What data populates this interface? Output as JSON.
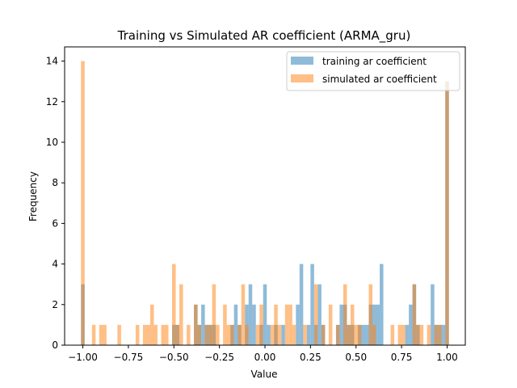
{
  "chart_data": {
    "type": "bar",
    "title": "Training vs Simulated AR coefficient (ARMA_gru)",
    "xlabel": "Value",
    "ylabel": "Frequency",
    "xlim": [
      -1.1,
      1.1
    ],
    "ylim": [
      0,
      14.7
    ],
    "grid": false,
    "legend_position": "top-right",
    "bin_width": 0.02,
    "xticks": [
      -1.0,
      -0.75,
      -0.5,
      -0.25,
      0.0,
      0.25,
      0.5,
      0.75,
      1.0
    ],
    "xtick_labels": [
      "−1.00",
      "−0.75",
      "−0.50",
      "−0.25",
      "0.00",
      "0.25",
      "0.50",
      "0.75",
      "1.00"
    ],
    "yticks": [
      0,
      2,
      4,
      6,
      8,
      10,
      12,
      14
    ],
    "ytick_labels": [
      "0",
      "2",
      "4",
      "6",
      "8",
      "10",
      "12",
      "14"
    ],
    "series": [
      {
        "name": "training ar coefficient",
        "color": "#1f77b4",
        "opacity": 0.5,
        "bins": [
          [
            -1.0,
            3
          ],
          [
            -0.5,
            1
          ],
          [
            -0.48,
            1
          ],
          [
            -0.38,
            2
          ],
          [
            -0.36,
            1
          ],
          [
            -0.34,
            2
          ],
          [
            -0.32,
            1
          ],
          [
            -0.3,
            1
          ],
          [
            -0.28,
            1
          ],
          [
            -0.18,
            1
          ],
          [
            -0.16,
            2
          ],
          [
            -0.14,
            1
          ],
          [
            -0.1,
            2
          ],
          [
            -0.08,
            3
          ],
          [
            -0.06,
            2
          ],
          [
            -0.02,
            1
          ],
          [
            0.0,
            3
          ],
          [
            0.02,
            1
          ],
          [
            0.06,
            1
          ],
          [
            0.1,
            1
          ],
          [
            0.18,
            2
          ],
          [
            0.2,
            4
          ],
          [
            0.24,
            1
          ],
          [
            0.26,
            4
          ],
          [
            0.28,
            1
          ],
          [
            0.3,
            3
          ],
          [
            0.32,
            1
          ],
          [
            0.4,
            1
          ],
          [
            0.42,
            2
          ],
          [
            0.44,
            2
          ],
          [
            0.46,
            1
          ],
          [
            0.48,
            1
          ],
          [
            0.52,
            1
          ],
          [
            0.54,
            1
          ],
          [
            0.56,
            1
          ],
          [
            0.58,
            2
          ],
          [
            0.6,
            2
          ],
          [
            0.62,
            2
          ],
          [
            0.64,
            4
          ],
          [
            0.78,
            1
          ],
          [
            0.8,
            2
          ],
          [
            0.82,
            3
          ],
          [
            0.84,
            1
          ],
          [
            0.92,
            3
          ],
          [
            0.94,
            1
          ],
          [
            0.96,
            1
          ],
          [
            0.98,
            1
          ],
          [
            1.0,
            13
          ]
        ]
      },
      {
        "name": "simulated ar coefficient",
        "color": "#ff7f0e",
        "opacity": 0.5,
        "bins": [
          [
            -1.0,
            14
          ],
          [
            -0.94,
            1
          ],
          [
            -0.9,
            1
          ],
          [
            -0.88,
            1
          ],
          [
            -0.8,
            1
          ],
          [
            -0.7,
            1
          ],
          [
            -0.66,
            1
          ],
          [
            -0.64,
            1
          ],
          [
            -0.62,
            2
          ],
          [
            -0.6,
            1
          ],
          [
            -0.56,
            1
          ],
          [
            -0.54,
            1
          ],
          [
            -0.5,
            4
          ],
          [
            -0.48,
            1
          ],
          [
            -0.46,
            3
          ],
          [
            -0.42,
            1
          ],
          [
            -0.38,
            2
          ],
          [
            -0.36,
            1
          ],
          [
            -0.32,
            1
          ],
          [
            -0.3,
            1
          ],
          [
            -0.28,
            3
          ],
          [
            -0.26,
            1
          ],
          [
            -0.22,
            2
          ],
          [
            -0.2,
            1
          ],
          [
            -0.18,
            1
          ],
          [
            -0.14,
            1
          ],
          [
            -0.12,
            3
          ],
          [
            -0.1,
            1
          ],
          [
            -0.04,
            1
          ],
          [
            -0.02,
            2
          ],
          [
            0.04,
            1
          ],
          [
            0.06,
            2
          ],
          [
            0.08,
            1
          ],
          [
            0.12,
            2
          ],
          [
            0.14,
            2
          ],
          [
            0.16,
            1
          ],
          [
            0.22,
            1
          ],
          [
            0.28,
            3
          ],
          [
            0.32,
            1
          ],
          [
            0.36,
            2
          ],
          [
            0.4,
            1
          ],
          [
            0.44,
            3
          ],
          [
            0.46,
            1
          ],
          [
            0.48,
            2
          ],
          [
            0.5,
            1
          ],
          [
            0.52,
            1
          ],
          [
            0.58,
            3
          ],
          [
            0.6,
            1
          ],
          [
            0.7,
            1
          ],
          [
            0.74,
            1
          ],
          [
            0.76,
            1
          ],
          [
            0.82,
            3
          ],
          [
            0.84,
            1
          ],
          [
            0.86,
            1
          ],
          [
            0.9,
            1
          ],
          [
            0.94,
            1
          ],
          [
            0.96,
            1
          ],
          [
            1.0,
            13
          ]
        ]
      }
    ]
  }
}
